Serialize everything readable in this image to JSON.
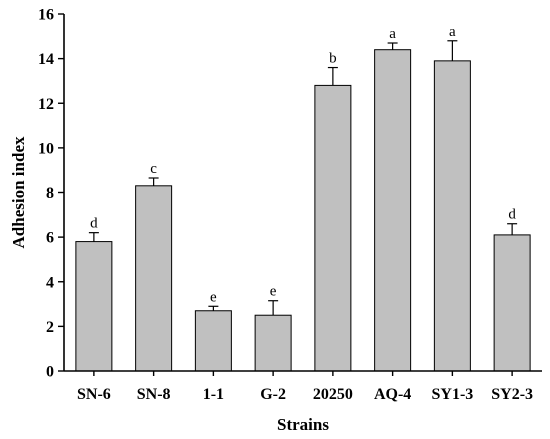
{
  "chart_data": {
    "type": "bar",
    "title": "",
    "xlabel": "Strains",
    "ylabel": "Adhesion index",
    "ylim": [
      0,
      16
    ],
    "yticks": [
      0,
      2,
      4,
      6,
      8,
      10,
      12,
      14,
      16
    ],
    "yticks_text": [
      "0",
      "2",
      "4",
      "6",
      "8",
      "10",
      "12",
      "14",
      "16"
    ],
    "grid": false,
    "categories": [
      "SN-6",
      "SN-8",
      "1-1",
      "G-2",
      "20250",
      "AQ-4",
      "SY1-3",
      "SY2-3"
    ],
    "values": [
      5.8,
      8.3,
      2.7,
      2.5,
      12.8,
      14.4,
      13.9,
      6.1
    ],
    "errors": [
      0.4,
      0.35,
      0.2,
      0.65,
      0.8,
      0.3,
      0.9,
      0.5
    ],
    "significance": [
      "d",
      "c",
      "e",
      "e",
      "b",
      "a",
      "a",
      "d"
    ],
    "bar_color": "#c0c0c0"
  }
}
